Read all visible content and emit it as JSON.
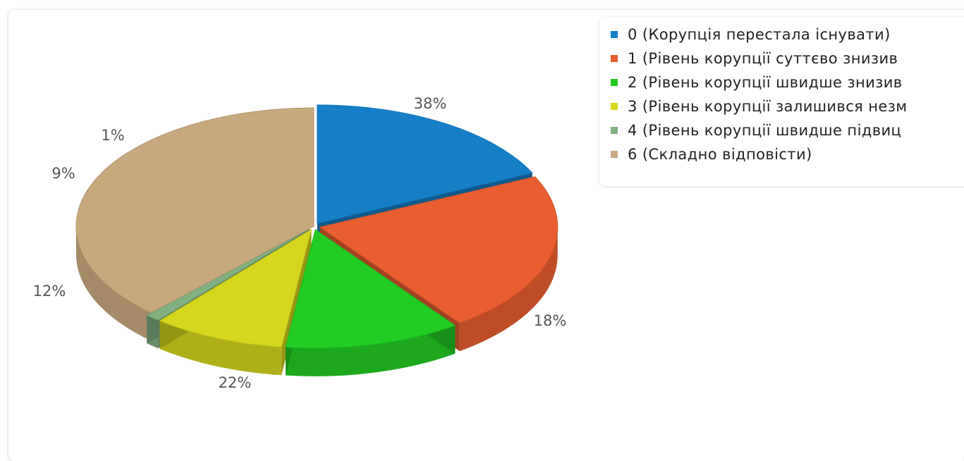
{
  "chart_data": {
    "type": "pie",
    "title": "",
    "slices": [
      {
        "label": "0 (Корупція перестала існувати)",
        "value": 18,
        "color": "#1580c8"
      },
      {
        "label": "1 (Рівень корупції суттєво знизив",
        "value": 22,
        "color": "#e85e30"
      },
      {
        "label": "2 (Рівень корупції швидше знизив",
        "value": 12,
        "color": "#22cc22"
      },
      {
        "label": "3 (Рівень корупції залишився незм",
        "value": 9,
        "color": "#d6d61e"
      },
      {
        "label": "4 (Рівень корупції швидше підвиц",
        "value": 1,
        "color": "#7fb07f"
      },
      {
        "label": "6 (Складно відповісти)",
        "value": 38,
        "color": "#c8a87e"
      }
    ],
    "data_labels": [
      "18%",
      "22%",
      "12%",
      "9%",
      "1%",
      "38%"
    ],
    "legend_position": "top-right",
    "style": "3d-exploded"
  }
}
